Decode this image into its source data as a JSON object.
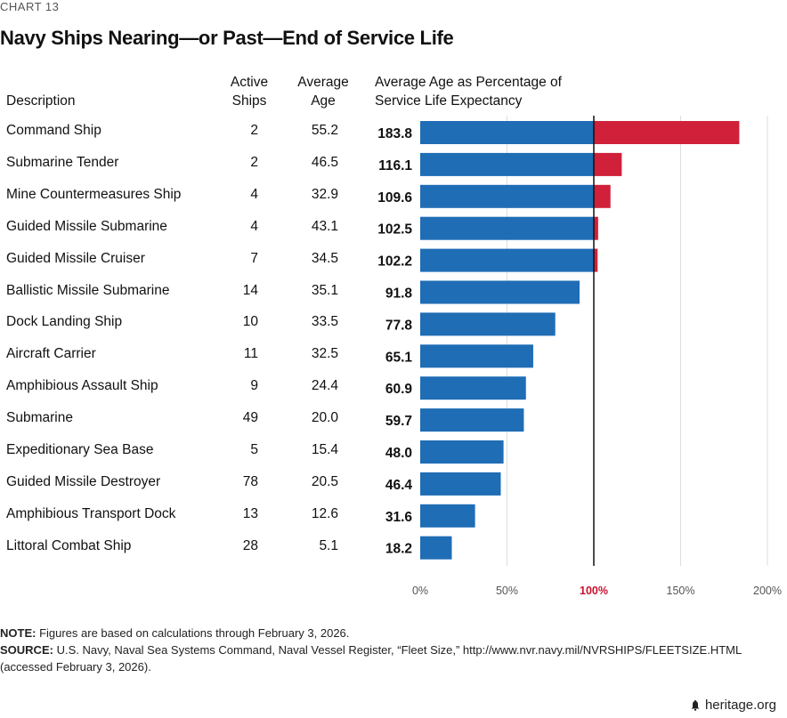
{
  "header": {
    "chart_label": "CHART 13",
    "title": "Navy Ships Nearing—or Past—End of Service Life"
  },
  "columns": {
    "description": "Description",
    "active_line1": "Active",
    "active_line2": "Ships",
    "age_line1": "Average",
    "age_line2": "Age",
    "pct_line1": "Average Age as Percentage of",
    "pct_line2": "Service Life Expectancy"
  },
  "rows": [
    {
      "description": "Command Ship",
      "active": "2",
      "age": "55.2",
      "pct": "183.8"
    },
    {
      "description": "Submarine Tender",
      "active": "2",
      "age": "46.5",
      "pct": "116.1"
    },
    {
      "description": "Mine Countermeasures Ship",
      "active": "4",
      "age": "32.9",
      "pct": "109.6"
    },
    {
      "description": "Guided Missile Submarine",
      "active": "4",
      "age": "43.1",
      "pct": "102.5"
    },
    {
      "description": "Guided Missile Cruiser",
      "active": "7",
      "age": "34.5",
      "pct": "102.2"
    },
    {
      "description": "Ballistic Missile Submarine",
      "active": "14",
      "age": "35.1",
      "pct": "91.8"
    },
    {
      "description": "Dock Landing Ship",
      "active": "10",
      "age": "33.5",
      "pct": "77.8"
    },
    {
      "description": "Aircraft Carrier",
      "active": "11",
      "age": "32.5",
      "pct": "65.1"
    },
    {
      "description": "Amphibious Assault Ship",
      "active": "9",
      "age": "24.4",
      "pct": "60.9"
    },
    {
      "description": "Submarine",
      "active": "49",
      "age": "20.0",
      "pct": "59.7"
    },
    {
      "description": "Expeditionary Sea Base",
      "active": "5",
      "age": "15.4",
      "pct": "48.0"
    },
    {
      "description": "Guided Missile Destroyer",
      "active": "78",
      "age": "20.5",
      "pct": "46.4"
    },
    {
      "description": "Amphibious Transport Dock",
      "active": "13",
      "age": "12.6",
      "pct": "31.6"
    },
    {
      "description": "Littoral Combat Ship",
      "active": "28",
      "age": "5.1",
      "pct": "18.2"
    }
  ],
  "chart_data": {
    "type": "bar",
    "orientation": "horizontal",
    "title": "Navy Ships Nearing—or Past—End of Service Life",
    "xlabel": "Average Age as Percentage of Service Life Expectancy",
    "categories": [
      "Command Ship",
      "Submarine Tender",
      "Mine Countermeasures Ship",
      "Guided Missile Submarine",
      "Guided Missile Cruiser",
      "Ballistic Missile Submarine",
      "Dock Landing Ship",
      "Aircraft Carrier",
      "Amphibious Assault Ship",
      "Submarine",
      "Expeditionary Sea Base",
      "Guided Missile Destroyer",
      "Amphibious Transport Dock",
      "Littoral Combat Ship"
    ],
    "values": [
      183.8,
      116.1,
      109.6,
      102.5,
      102.2,
      91.8,
      77.8,
      65.1,
      60.9,
      59.7,
      48.0,
      46.4,
      31.6,
      18.2
    ],
    "xlim": [
      0,
      200
    ],
    "threshold": 100,
    "ticks": [
      0,
      50,
      100,
      150,
      200
    ],
    "tick_labels": [
      "0%",
      "50%",
      "100%",
      "150%",
      "200%"
    ],
    "colors": {
      "base": "#1f6db5",
      "over": "#d0203a",
      "threshold_label": "#c8102e",
      "grid": "#dddddd"
    }
  },
  "footer": {
    "note_label": "NOTE:",
    "note_text": " Figures are based on calculations through February 3, 2026.",
    "source_label": "SOURCE:",
    "source_text": " U.S. Navy, Naval Sea Systems Command, Naval Vessel Register, “Fleet Size,” http://www.nvr.navy.mil/NVRSHIPS/FLEETSIZE.HTML",
    "source_text2": "(accessed February 3, 2026).",
    "logo_text": "heritage.org"
  }
}
